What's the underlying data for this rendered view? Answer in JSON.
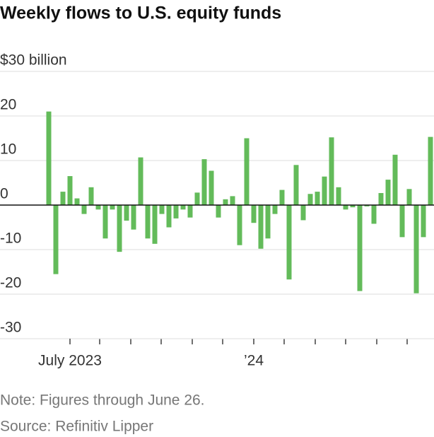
{
  "chart_data": {
    "type": "bar",
    "title": "Weekly flows to U.S. equity funds",
    "notes": [
      "Note: Figures through June 26.",
      "Source: Refinitiv Lipper"
    ],
    "categories": [
      null,
      null,
      null,
      "July 2023",
      null,
      null,
      null,
      null,
      null,
      null,
      null,
      null,
      null,
      null,
      null,
      null,
      null,
      null,
      null,
      null,
      null,
      null,
      null,
      null,
      null,
      null,
      null,
      null,
      null,
      "’24",
      null,
      null,
      null,
      null,
      null,
      null,
      null,
      null,
      null,
      null,
      null,
      null,
      null,
      null,
      null,
      null,
      null,
      null,
      null,
      null,
      null,
      null,
      null,
      null,
      null
    ],
    "values": [
      21,
      -15.5,
      3,
      6.5,
      1.5,
      -2,
      4,
      -1,
      -7.5,
      -1,
      -10.5,
      -3.5,
      -5.5,
      10.7,
      -7.5,
      -8.7,
      -2,
      -5,
      -3,
      -1,
      -2.8,
      2.8,
      10.3,
      7.7,
      -2.8,
      1.3,
      2,
      -9,
      15,
      -4,
      -9.8,
      -7.5,
      -2,
      3.4,
      -16.7,
      9,
      -3.4,
      2.5,
      3,
      6.4,
      15.2,
      4,
      -1,
      -0.5,
      -19.3,
      -0.3,
      -4.2,
      2.7,
      5.7,
      11.3,
      -7.2,
      3.6,
      -19.8,
      -7.2,
      15.3
    ],
    "color": "#63bb5a",
    "ylim": [
      -30,
      30
    ],
    "yticks": [
      -30,
      -20,
      -10,
      0,
      20,
      10,
      {
        "value": 30,
        "label": "$30 billion"
      }
    ],
    "grid": true
  }
}
